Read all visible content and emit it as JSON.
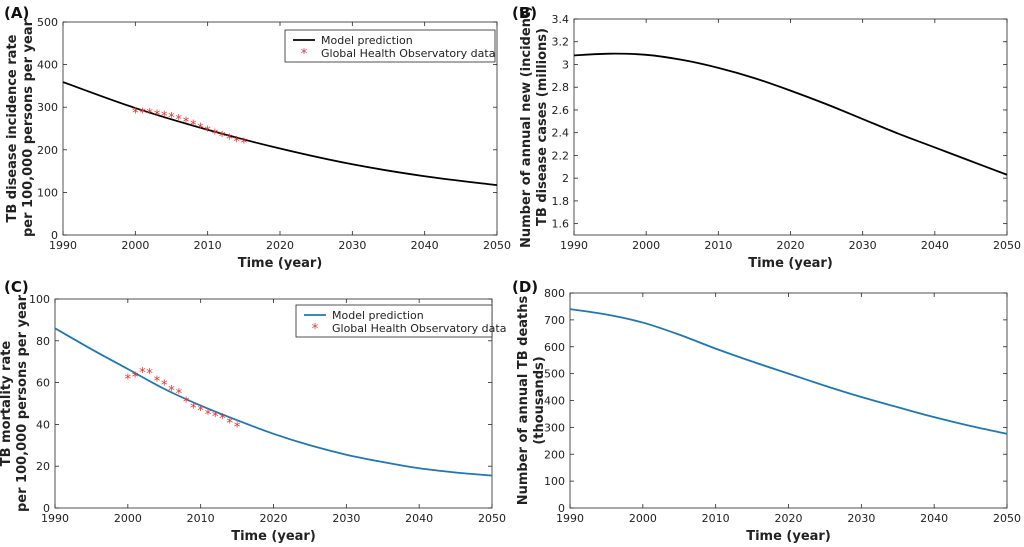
{
  "chart_data": [
    {
      "panel": "(A)",
      "type": "line",
      "xlabel": "Time (year)",
      "ylabel": [
        "TB disease incidence rate",
        "per 100,000 persons per year"
      ],
      "xlim": [
        1990,
        2050
      ],
      "ylim": [
        0,
        500
      ],
      "xticks": [
        1990,
        2000,
        2010,
        2020,
        2030,
        2040,
        2050
      ],
      "yticks": [
        0,
        100,
        200,
        300,
        400,
        500
      ],
      "legend": "top-center",
      "colors": {
        "line": "#000000",
        "scatter": "#e8312b"
      },
      "series": [
        {
          "name": "Model prediction",
          "kind": "line",
          "x": [
            1990,
            2000,
            2010,
            2020,
            2030,
            2040,
            2050
          ],
          "y": [
            359,
            298,
            247,
            203,
            166,
            138,
            117
          ]
        },
        {
          "name": "Global Health Observatory data",
          "kind": "scatter",
          "x": [
            2000,
            2001,
            2002,
            2003,
            2004,
            2005,
            2006,
            2007,
            2008,
            2009,
            2010,
            2011,
            2012,
            2013,
            2014,
            2015
          ],
          "y": [
            288,
            287,
            286,
            283,
            280,
            277,
            272,
            266,
            259,
            252,
            245,
            238,
            232,
            227,
            221,
            217
          ]
        }
      ]
    },
    {
      "panel": "(B)",
      "type": "line",
      "xlabel": "Time (year)",
      "ylabel": [
        "Number of annual new (incident)",
        "TB disease cases (millions)"
      ],
      "xlim": [
        1990,
        2050
      ],
      "ylim": [
        1.5,
        3.4
      ],
      "xticks": [
        1990,
        2000,
        2010,
        2020,
        2030,
        2040,
        2050
      ],
      "yticks": [
        1.6,
        1.8,
        2,
        2.2,
        2.4,
        2.6,
        2.8,
        3,
        3.2,
        3.4
      ],
      "colors": {
        "line": "#000000"
      },
      "series": [
        {
          "kind": "line",
          "x": [
            1990,
            1995,
            2000,
            2005,
            2010,
            2015,
            2020,
            2025,
            2030,
            2035,
            2040,
            2045,
            2050
          ],
          "y": [
            3.08,
            3.095,
            3.085,
            3.04,
            2.97,
            2.88,
            2.77,
            2.65,
            2.52,
            2.39,
            2.27,
            2.15,
            2.03
          ]
        }
      ]
    },
    {
      "panel": "(C)",
      "type": "line",
      "xlabel": "Time (year)",
      "ylabel": [
        "TB mortality rate",
        "per 100,000 persons per year"
      ],
      "xlim": [
        1990,
        2050
      ],
      "ylim": [
        0,
        100
      ],
      "xticks": [
        1990,
        2000,
        2010,
        2020,
        2030,
        2040,
        2050
      ],
      "yticks": [
        0,
        20,
        40,
        60,
        80,
        100
      ],
      "legend": "top-center",
      "colors": {
        "line": "#1f77b4",
        "scatter": "#e8312b"
      },
      "series": [
        {
          "name": "Model prediction",
          "kind": "line",
          "x": [
            1990,
            1995,
            2000,
            2005,
            2010,
            2015,
            2020,
            2025,
            2030,
            2035,
            2040,
            2045,
            2050
          ],
          "y": [
            86,
            76,
            66.5,
            57,
            49,
            42,
            35.5,
            30,
            25.5,
            22,
            19,
            17,
            15.5
          ]
        },
        {
          "name": "Global Health Observatory data",
          "kind": "scatter",
          "x": [
            2000,
            2001,
            2002,
            2003,
            2004,
            2005,
            2006,
            2007,
            2008,
            2009,
            2010,
            2011,
            2012,
            2013,
            2014,
            2015
          ],
          "y": [
            62,
            63,
            65,
            64.5,
            61,
            59,
            56.5,
            55,
            51,
            48,
            47,
            45,
            44,
            43,
            41,
            39
          ]
        }
      ]
    },
    {
      "panel": "(D)",
      "type": "line",
      "xlabel": "Time (year)",
      "ylabel": [
        "Number of annual TB deaths",
        "(thousands)"
      ],
      "xlim": [
        1990,
        2050
      ],
      "ylim": [
        0,
        800
      ],
      "xticks": [
        1990,
        2000,
        2010,
        2020,
        2030,
        2040,
        2050
      ],
      "yticks": [
        0,
        100,
        200,
        300,
        400,
        500,
        600,
        700,
        800
      ],
      "colors": {
        "line": "#1f77b4"
      },
      "series": [
        {
          "kind": "line",
          "x": [
            1990,
            1995,
            2000,
            2005,
            2010,
            2015,
            2020,
            2025,
            2030,
            2035,
            2040,
            2045,
            2050
          ],
          "y": [
            740,
            720,
            690,
            645,
            593,
            545,
            500,
            455,
            413,
            375,
            338,
            305,
            276
          ]
        }
      ]
    }
  ]
}
